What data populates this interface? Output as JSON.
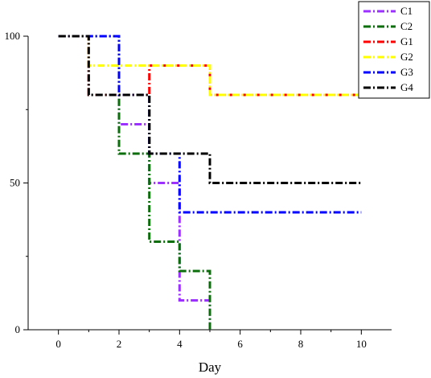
{
  "chart_data": {
    "type": "line",
    "step": true,
    "xlabel": "Day",
    "ylabel": "",
    "xlim": [
      -1,
      11
    ],
    "ylim": [
      0,
      100
    ],
    "xticks": [
      0,
      2,
      4,
      6,
      8,
      10
    ],
    "yticks": [
      0,
      50,
      100
    ],
    "grid": false,
    "legend_position": "top-right",
    "series": [
      {
        "name": "C1",
        "color": "#9b30ff",
        "points": [
          [
            0,
            100
          ],
          [
            2,
            100
          ],
          [
            2,
            70
          ],
          [
            3,
            70
          ],
          [
            3,
            50
          ],
          [
            4,
            50
          ],
          [
            4,
            10
          ],
          [
            5,
            10
          ],
          [
            5,
            0
          ]
        ]
      },
      {
        "name": "C2",
        "color": "#0b6e0b",
        "points": [
          [
            0,
            100
          ],
          [
            2,
            100
          ],
          [
            2,
            60
          ],
          [
            3,
            60
          ],
          [
            3,
            30
          ],
          [
            4,
            30
          ],
          [
            4,
            20
          ],
          [
            5,
            20
          ],
          [
            5,
            0
          ]
        ]
      },
      {
        "name": "G1",
        "color": "#ff0000",
        "points": [
          [
            0,
            100
          ],
          [
            1,
            100
          ],
          [
            1,
            80
          ],
          [
            3,
            80
          ],
          [
            3,
            90
          ],
          [
            5,
            90
          ],
          [
            5,
            80
          ],
          [
            10,
            80
          ]
        ]
      },
      {
        "name": "G2",
        "color": "#ffff00",
        "points": [
          [
            0,
            100
          ],
          [
            1,
            100
          ],
          [
            1,
            90
          ],
          [
            5,
            90
          ],
          [
            5,
            80
          ],
          [
            10,
            80
          ]
        ]
      },
      {
        "name": "G3",
        "color": "#0000ff",
        "points": [
          [
            0,
            100
          ],
          [
            2,
            100
          ],
          [
            2,
            80
          ],
          [
            3,
            80
          ],
          [
            3,
            60
          ],
          [
            4,
            60
          ],
          [
            4,
            40
          ],
          [
            10,
            40
          ]
        ]
      },
      {
        "name": "G4",
        "color": "#000000",
        "points": [
          [
            0,
            100
          ],
          [
            1,
            100
          ],
          [
            1,
            80
          ],
          [
            3,
            80
          ],
          [
            3,
            60
          ],
          [
            5,
            60
          ],
          [
            5,
            50
          ],
          [
            10,
            50
          ]
        ]
      }
    ]
  }
}
